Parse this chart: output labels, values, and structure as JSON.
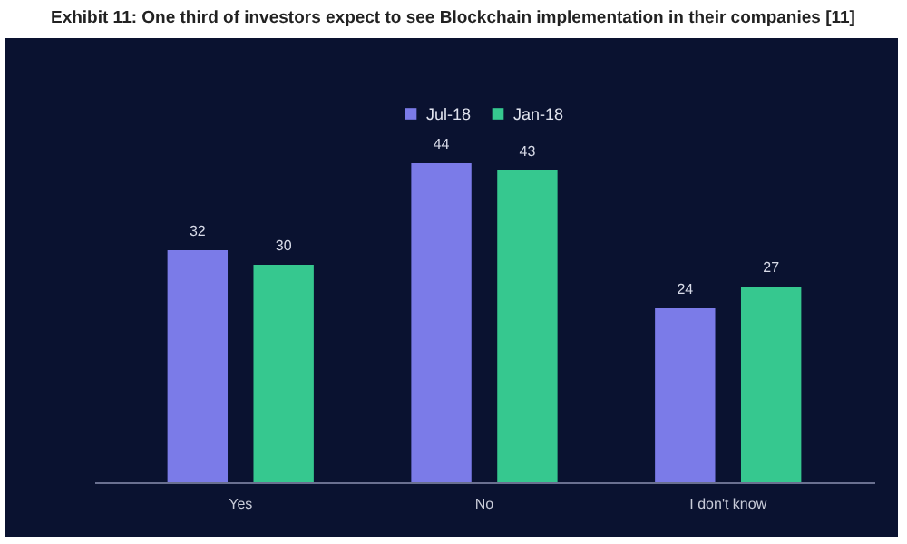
{
  "chart_data": {
    "type": "bar",
    "title": "Exhibit 11: One third of investors expect to see Blockchain implementation in their companies [11]",
    "categories": [
      "Yes",
      "No",
      "I don't know"
    ],
    "series": [
      {
        "name": "Jul-18",
        "color": "#7b7be8",
        "values": [
          32,
          44,
          24
        ]
      },
      {
        "name": "Jan-18",
        "color": "#36c88f",
        "values": [
          30,
          43,
          27
        ]
      }
    ],
    "data_labels": true,
    "legend": "top",
    "grid": false
  }
}
